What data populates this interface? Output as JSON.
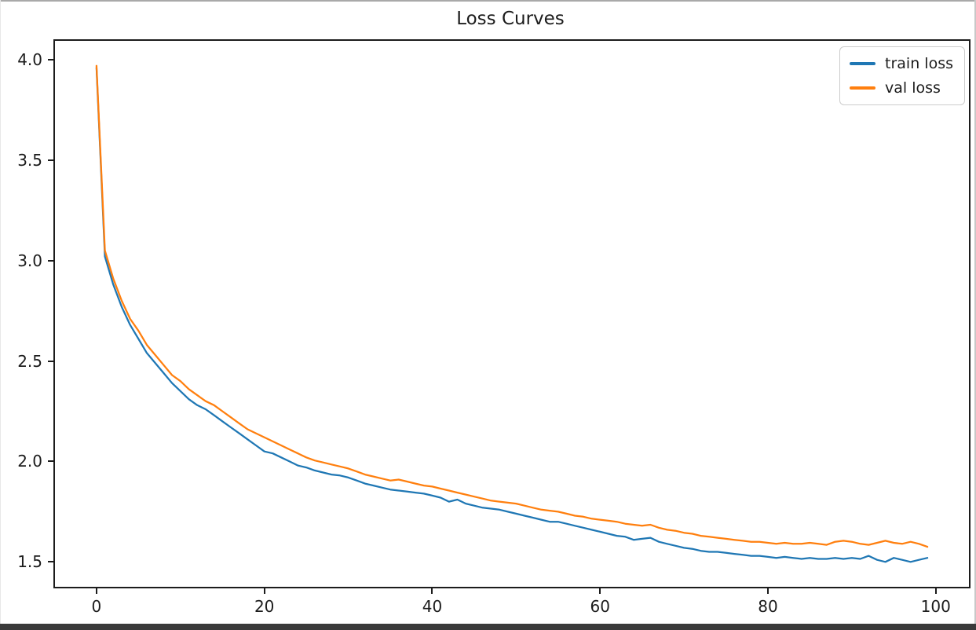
{
  "window": {
    "top_border_color": "#a9a9a9",
    "right_border_color": "#c8c8c8",
    "left_border_color": "#e8e8e8",
    "bottom_bar_color": "#3a3a3a",
    "background": "#ffffff"
  },
  "chart_data": {
    "type": "line",
    "title": "Loss Curves",
    "xlabel": "",
    "ylabel": "",
    "grid": false,
    "legend_position": "upper right",
    "n_points": 100,
    "x_description": "epoch index 0-99, step 1",
    "xlim": [
      -4.95,
      103.95
    ],
    "ylim": [
      1.376,
      4.094
    ],
    "x_ticks": [
      0,
      20,
      40,
      60,
      80,
      100
    ],
    "x_tick_labels": [
      "0",
      "20",
      "40",
      "60",
      "80",
      "100"
    ],
    "y_ticks": [
      1.5,
      2.0,
      2.5,
      3.0,
      3.5,
      4.0
    ],
    "y_tick_labels": [
      "1.5",
      "2.0",
      "2.5",
      "3.0",
      "3.5",
      "4.0"
    ],
    "axis_color": "#1c1c1c",
    "series": [
      {
        "name": "train loss",
        "color": "#1f77b4",
        "values": [
          3.96,
          3.02,
          2.88,
          2.77,
          2.68,
          2.61,
          2.54,
          2.49,
          2.44,
          2.39,
          2.35,
          2.31,
          2.28,
          2.26,
          2.23,
          2.2,
          2.17,
          2.14,
          2.11,
          2.08,
          2.05,
          2.04,
          2.02,
          2.0,
          1.98,
          1.97,
          1.955,
          1.945,
          1.935,
          1.93,
          1.92,
          1.905,
          1.89,
          1.88,
          1.87,
          1.86,
          1.855,
          1.85,
          1.845,
          1.84,
          1.83,
          1.82,
          1.8,
          1.81,
          1.79,
          1.78,
          1.77,
          1.765,
          1.76,
          1.75,
          1.74,
          1.73,
          1.72,
          1.71,
          1.7,
          1.7,
          1.69,
          1.68,
          1.67,
          1.66,
          1.65,
          1.64,
          1.63,
          1.625,
          1.61,
          1.615,
          1.62,
          1.6,
          1.59,
          1.58,
          1.57,
          1.565,
          1.555,
          1.55,
          1.55,
          1.545,
          1.54,
          1.535,
          1.53,
          1.53,
          1.525,
          1.52,
          1.525,
          1.52,
          1.515,
          1.52,
          1.515,
          1.515,
          1.52,
          1.515,
          1.52,
          1.515,
          1.53,
          1.51,
          1.5,
          1.52,
          1.51,
          1.5,
          1.51,
          1.52
        ]
      },
      {
        "name": "val loss",
        "color": "#ff7f0e",
        "values": [
          3.97,
          3.05,
          2.91,
          2.8,
          2.71,
          2.65,
          2.58,
          2.53,
          2.48,
          2.43,
          2.4,
          2.36,
          2.33,
          2.3,
          2.28,
          2.25,
          2.22,
          2.19,
          2.16,
          2.14,
          2.12,
          2.1,
          2.08,
          2.06,
          2.04,
          2.02,
          2.005,
          1.995,
          1.985,
          1.975,
          1.965,
          1.95,
          1.935,
          1.925,
          1.915,
          1.905,
          1.91,
          1.9,
          1.89,
          1.88,
          1.875,
          1.865,
          1.855,
          1.845,
          1.835,
          1.825,
          1.815,
          1.805,
          1.8,
          1.795,
          1.79,
          1.78,
          1.77,
          1.76,
          1.755,
          1.75,
          1.74,
          1.73,
          1.725,
          1.715,
          1.71,
          1.705,
          1.7,
          1.69,
          1.685,
          1.68,
          1.685,
          1.67,
          1.66,
          1.655,
          1.645,
          1.64,
          1.63,
          1.625,
          1.62,
          1.615,
          1.61,
          1.605,
          1.6,
          1.6,
          1.595,
          1.59,
          1.595,
          1.59,
          1.59,
          1.595,
          1.59,
          1.585,
          1.6,
          1.605,
          1.6,
          1.59,
          1.585,
          1.595,
          1.605,
          1.595,
          1.59,
          1.6,
          1.59,
          1.575
        ]
      }
    ]
  }
}
